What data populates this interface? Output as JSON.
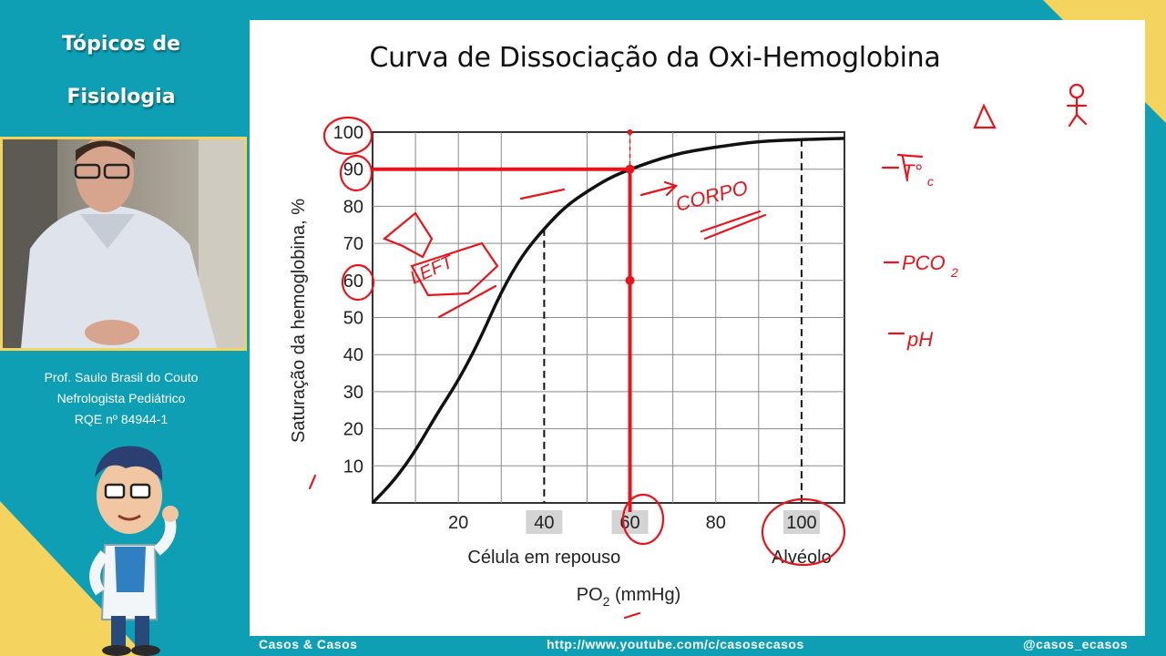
{
  "sidebar": {
    "topic_line1": "Tópicos de",
    "topic_line2": "Fisiologia",
    "professor": "Prof. Saulo Brasil do Couto",
    "specialty": "Nefrologista Pediátrico",
    "rqe": "RQE nº 84944-1"
  },
  "slide": {
    "title": "Curva de Dissociação da Oxi-Hemoglobina"
  },
  "chart_data": {
    "type": "line",
    "title": "Curva de Dissociação da Oxi-Hemoglobina",
    "xlabel": "PO2 (mmHg)",
    "xlabel_main": "PO",
    "xlabel_sub": "2",
    "xlabel_units": " (mmHg)",
    "ylabel": "Saturação da hemoglobina, %",
    "xlim": [
      0,
      110
    ],
    "ylim": [
      0,
      100
    ],
    "grid": true,
    "x_ticks": [
      20,
      40,
      60,
      80,
      100
    ],
    "x_tick_labels": [
      "20",
      "40",
      "60",
      "80",
      "100"
    ],
    "y_ticks": [
      10,
      20,
      30,
      40,
      50,
      60,
      70,
      80,
      90,
      100
    ],
    "y_tick_labels": [
      "10",
      "20",
      "30",
      "40",
      "50",
      "60",
      "70",
      "80",
      "90",
      "100"
    ],
    "highlighted_x_ticks": [
      40,
      60,
      100
    ],
    "dashed_markers_x": [
      40,
      100
    ],
    "marker_labels": [
      {
        "x": 40,
        "text": "Célula em repouso"
      },
      {
        "x": 100,
        "text": "Alvéolo"
      }
    ],
    "series": [
      {
        "x": [
          0,
          5,
          10,
          15,
          20,
          25,
          30,
          35,
          40,
          45,
          50,
          55,
          60,
          70,
          80,
          90,
          100,
          110
        ],
        "y": [
          0,
          6,
          14,
          24,
          33,
          44,
          57,
          67,
          74,
          80,
          84,
          87.5,
          90,
          94,
          96,
          97.5,
          98,
          98.3
        ]
      }
    ],
    "annotations": [
      {
        "type": "reference-lines",
        "x": 60,
        "y": 90,
        "color": "#e8141b"
      }
    ]
  },
  "handwritten": [
    "LEFT",
    "CORPO",
    "T°C",
    "PCO2",
    "pH",
    "Δ"
  ],
  "footer": {
    "brand": "Casos & Casos",
    "url": "http://www.youtube.com/c/casosecasos",
    "handle": "@casos_ecasos"
  },
  "colors": {
    "background": "#0e9fb4",
    "accent": "#f4d35e",
    "ink": "#e8141b"
  }
}
